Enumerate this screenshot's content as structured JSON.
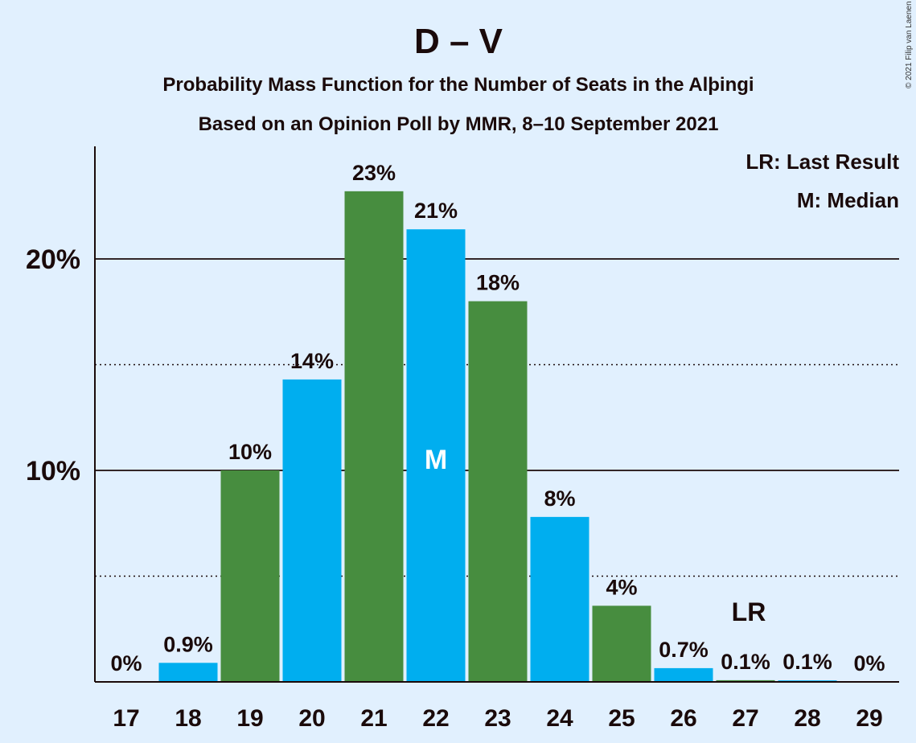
{
  "chart_data": {
    "type": "bar",
    "title": "D – V",
    "subtitle_lines": [
      "Probability Mass Function for the Number of Seats in the Alþingi",
      "Based on an Opinion Poll by MMR, 8–10 September 2021"
    ],
    "copyright": "© 2021 Filip van Laenen",
    "categories": [
      "17",
      "18",
      "19",
      "20",
      "21",
      "22",
      "23",
      "24",
      "25",
      "26",
      "27",
      "28",
      "29"
    ],
    "values": [
      0,
      0.9,
      10,
      14.3,
      23.2,
      21.4,
      18,
      7.8,
      3.6,
      0.65,
      0.08,
      0.07,
      0
    ],
    "labels": [
      "0%",
      "0.9%",
      "10%",
      "14%",
      "23%",
      "21%",
      "18%",
      "8%",
      "4%",
      "0.7%",
      "0.1%",
      "0.1%",
      "0%"
    ],
    "bar_colors": [
      "#00aeef",
      "#00aeef",
      "#478d3f",
      "#00aeef",
      "#478d3f",
      "#00aeef",
      "#478d3f",
      "#00aeef",
      "#478d3f",
      "#00aeef",
      "#478d3f",
      "#00aeef",
      "#478d3f"
    ],
    "ylim": [
      0,
      25
    ],
    "yticks": [
      {
        "value": 10,
        "label": "10%"
      },
      {
        "value": 20,
        "label": "20%"
      }
    ],
    "minor_gridlines": [
      5,
      15
    ],
    "last_result": {
      "category": "27",
      "label": "LR"
    },
    "median": {
      "category": "22",
      "label": "M"
    },
    "legend": [
      "LR: Last Result",
      "M: Median"
    ],
    "legend_position": "top-right",
    "colors": {
      "background": "#e1f0fe",
      "blue": "#00aeef",
      "green": "#478d3f",
      "text": "#1a0a0a"
    }
  }
}
